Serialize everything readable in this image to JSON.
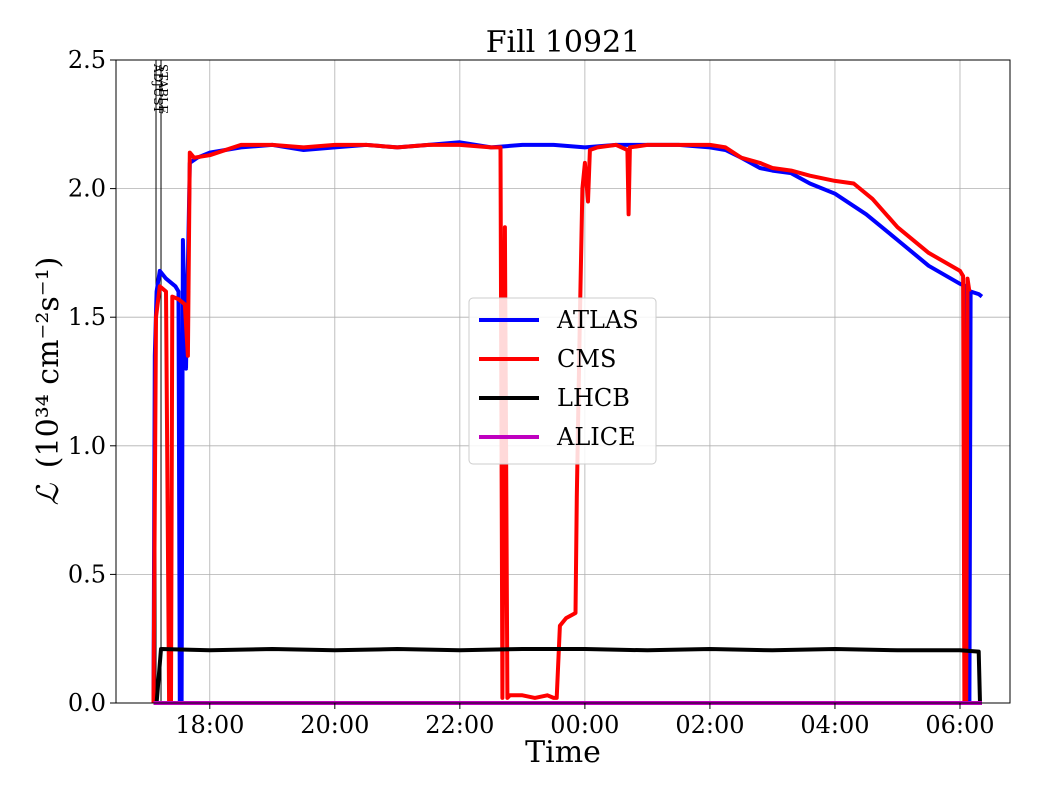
{
  "chart_data": {
    "type": "line",
    "title": "Fill 10921",
    "xlabel": "Time",
    "ylabel_main": "ℒ",
    "ylabel_units": "(10³⁴ cm⁻²s⁻¹)",
    "x_unit": "hours since 16:00",
    "xlim": [
      0.5,
      14.8
    ],
    "ylim": [
      0,
      2.5
    ],
    "xticks": [
      {
        "value": 2,
        "label": "18:00"
      },
      {
        "value": 4,
        "label": "20:00"
      },
      {
        "value": 6,
        "label": "22:00"
      },
      {
        "value": 8,
        "label": "00:00"
      },
      {
        "value": 10,
        "label": "02:00"
      },
      {
        "value": 12,
        "label": "04:00"
      },
      {
        "value": 14,
        "label": "06:00"
      }
    ],
    "yticks": [
      {
        "value": 0.0,
        "label": "0.0"
      },
      {
        "value": 0.5,
        "label": "0.5"
      },
      {
        "value": 1.0,
        "label": "1.0"
      },
      {
        "value": 1.5,
        "label": "1.5"
      },
      {
        "value": 2.0,
        "label": "2.0"
      },
      {
        "value": 2.5,
        "label": "2.5"
      }
    ],
    "grid": true,
    "legend_position": "center-right",
    "markers": [
      {
        "x": 1.14,
        "label": "ADJUST"
      },
      {
        "x": 1.22,
        "label": "STABLE"
      }
    ],
    "series": [
      {
        "name": "ATLAS",
        "color": "#0000ff",
        "points": [
          [
            1.1,
            0
          ],
          [
            1.12,
            1.35
          ],
          [
            1.15,
            1.6
          ],
          [
            1.2,
            1.68
          ],
          [
            1.3,
            1.65
          ],
          [
            1.45,
            1.62
          ],
          [
            1.5,
            1.6
          ],
          [
            1.52,
            0
          ],
          [
            1.55,
            0
          ],
          [
            1.57,
            1.8
          ],
          [
            1.62,
            1.3
          ],
          [
            1.68,
            2.1
          ],
          [
            1.8,
            2.12
          ],
          [
            2,
            2.14
          ],
          [
            2.5,
            2.16
          ],
          [
            3,
            2.17
          ],
          [
            3.5,
            2.15
          ],
          [
            4,
            2.16
          ],
          [
            4.5,
            2.17
          ],
          [
            5,
            2.16
          ],
          [
            5.5,
            2.17
          ],
          [
            6,
            2.18
          ],
          [
            6.5,
            2.16
          ],
          [
            7,
            2.17
          ],
          [
            7.5,
            2.17
          ],
          [
            8,
            2.16
          ],
          [
            8.5,
            2.17
          ],
          [
            9,
            2.17
          ],
          [
            9.5,
            2.17
          ],
          [
            10,
            2.16
          ],
          [
            10.25,
            2.15
          ],
          [
            10.5,
            2.12
          ],
          [
            10.8,
            2.08
          ],
          [
            11,
            2.07
          ],
          [
            11.3,
            2.06
          ],
          [
            11.6,
            2.02
          ],
          [
            12,
            1.98
          ],
          [
            12.5,
            1.9
          ],
          [
            13,
            1.8
          ],
          [
            13.5,
            1.7
          ],
          [
            14,
            1.63
          ],
          [
            14.1,
            1.62
          ],
          [
            14.12,
            0
          ],
          [
            14.15,
            0
          ],
          [
            14.17,
            1.6
          ],
          [
            14.3,
            1.59
          ],
          [
            14.35,
            1.58
          ]
        ]
      },
      {
        "name": "CMS",
        "color": "#ff0000",
        "points": [
          [
            1.1,
            0
          ],
          [
            1.14,
            1.5
          ],
          [
            1.2,
            1.62
          ],
          [
            1.3,
            1.6
          ],
          [
            1.35,
            0
          ],
          [
            1.38,
            0
          ],
          [
            1.4,
            1.58
          ],
          [
            1.5,
            1.57
          ],
          [
            1.6,
            1.55
          ],
          [
            1.65,
            1.35
          ],
          [
            1.68,
            2.14
          ],
          [
            1.75,
            2.12
          ],
          [
            2,
            2.13
          ],
          [
            2.5,
            2.17
          ],
          [
            3,
            2.17
          ],
          [
            3.5,
            2.16
          ],
          [
            4,
            2.17
          ],
          [
            4.5,
            2.17
          ],
          [
            5,
            2.16
          ],
          [
            5.5,
            2.17
          ],
          [
            6,
            2.17
          ],
          [
            6.5,
            2.16
          ],
          [
            6.65,
            2.16
          ],
          [
            6.68,
            0.02
          ],
          [
            6.72,
            1.85
          ],
          [
            6.76,
            0.02
          ],
          [
            6.8,
            0.03
          ],
          [
            7,
            0.03
          ],
          [
            7.2,
            0.02
          ],
          [
            7.4,
            0.03
          ],
          [
            7.5,
            0.02
          ],
          [
            7.55,
            0.02
          ],
          [
            7.6,
            0.3
          ],
          [
            7.7,
            0.33
          ],
          [
            7.85,
            0.35
          ],
          [
            7.87,
            0.8
          ],
          [
            7.92,
            1.5
          ],
          [
            7.96,
            2.0
          ],
          [
            8,
            2.1
          ],
          [
            8.05,
            1.95
          ],
          [
            8.08,
            2.15
          ],
          [
            8.2,
            2.16
          ],
          [
            8.5,
            2.17
          ],
          [
            8.68,
            2.15
          ],
          [
            8.7,
            1.9
          ],
          [
            8.72,
            2.16
          ],
          [
            9,
            2.17
          ],
          [
            9.5,
            2.17
          ],
          [
            10,
            2.17
          ],
          [
            10.25,
            2.16
          ],
          [
            10.5,
            2.12
          ],
          [
            10.8,
            2.1
          ],
          [
            11,
            2.08
          ],
          [
            11.3,
            2.07
          ],
          [
            11.6,
            2.05
          ],
          [
            12,
            2.03
          ],
          [
            12.3,
            2.02
          ],
          [
            12.6,
            1.96
          ],
          [
            13,
            1.85
          ],
          [
            13.5,
            1.75
          ],
          [
            14,
            1.68
          ],
          [
            14.05,
            1.66
          ],
          [
            14.07,
            0
          ],
          [
            14.1,
            0
          ],
          [
            14.12,
            1.65
          ],
          [
            14.15,
            1.6
          ]
        ]
      },
      {
        "name": "LHCB",
        "color": "#000000",
        "points": [
          [
            1.1,
            0
          ],
          [
            1.15,
            0
          ],
          [
            1.22,
            0.21
          ],
          [
            2,
            0.205
          ],
          [
            3,
            0.21
          ],
          [
            4,
            0.205
          ],
          [
            5,
            0.21
          ],
          [
            6,
            0.205
          ],
          [
            7,
            0.21
          ],
          [
            8,
            0.21
          ],
          [
            9,
            0.205
          ],
          [
            10,
            0.21
          ],
          [
            11,
            0.205
          ],
          [
            12,
            0.21
          ],
          [
            13,
            0.205
          ],
          [
            14,
            0.205
          ],
          [
            14.3,
            0.2
          ],
          [
            14.32,
            0
          ],
          [
            14.35,
            0
          ]
        ]
      },
      {
        "name": "ALICE",
        "color": "#bf00bf",
        "points": [
          [
            1.1,
            0
          ],
          [
            14.35,
            0
          ]
        ]
      }
    ]
  }
}
